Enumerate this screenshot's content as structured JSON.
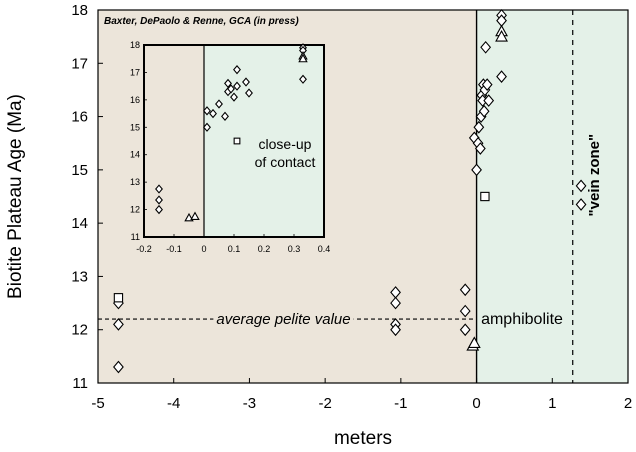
{
  "chart_data": {
    "type": "scatter",
    "citation": "Baxter, DePaolo & Renne, GCA (in press)",
    "xlabel": "meters",
    "ylabel": "Biotite Plateau Age (Ma)",
    "xlim": [
      -5,
      2
    ],
    "ylim": [
      11,
      18
    ],
    "xticks": [
      "-5",
      "-4",
      "-3",
      "-2",
      "-1",
      "0",
      "1",
      "2"
    ],
    "yticks": [
      "11",
      "12",
      "13",
      "14",
      "15",
      "16",
      "17",
      "18"
    ],
    "colors": {
      "pelite": "#ece5da",
      "amphibolite": "#e4f1e8",
      "axis": "#000000"
    },
    "contact_x": 0,
    "vein_zone_x": 1.27,
    "average_pelite_value": 12.2,
    "annotations": {
      "pelite_value": "average pelite value",
      "amphibolite": "amphibolite",
      "vein_zone": "\"vein zone\"",
      "inset": [
        "close-up",
        "of contact"
      ]
    },
    "series": [
      {
        "marker": "diamond",
        "points": [
          [
            -4.73,
            12.5
          ],
          [
            -4.73,
            12.1
          ],
          [
            -4.73,
            11.3
          ],
          [
            -1.07,
            12.7
          ],
          [
            -1.07,
            12.5
          ],
          [
            -1.07,
            12.1
          ],
          [
            -1.07,
            12.0
          ],
          [
            -0.15,
            12.75
          ],
          [
            -0.15,
            12.35
          ],
          [
            -0.15,
            12.0
          ],
          [
            -0.03,
            15.6
          ],
          [
            0.0,
            15.0
          ],
          [
            0.02,
            15.5
          ],
          [
            0.03,
            15.8
          ],
          [
            0.05,
            15.4
          ],
          [
            0.06,
            16.0
          ],
          [
            0.07,
            16.4
          ],
          [
            0.08,
            16.3
          ],
          [
            0.09,
            16.6
          ],
          [
            0.1,
            16.1
          ],
          [
            0.11,
            16.5
          ],
          [
            0.12,
            17.3
          ],
          [
            0.14,
            16.6
          ],
          [
            0.16,
            16.3
          ],
          [
            0.33,
            17.9
          ],
          [
            0.33,
            17.8
          ],
          [
            0.33,
            16.75
          ],
          [
            1.38,
            14.7
          ],
          [
            1.38,
            14.35
          ]
        ]
      },
      {
        "marker": "triangle",
        "points": [
          [
            -0.05,
            11.7
          ],
          [
            -0.03,
            11.75
          ],
          [
            0.33,
            17.6
          ],
          [
            0.33,
            17.5
          ]
        ]
      },
      {
        "marker": "square",
        "points": [
          [
            -4.73,
            12.6
          ],
          [
            0.11,
            14.5
          ]
        ]
      }
    ],
    "inset": {
      "xlim": [
        -0.2,
        0.4
      ],
      "ylim": [
        11,
        18
      ],
      "xticks": [
        "-0.2",
        "-0.1",
        "0",
        "0.1",
        "0.2",
        "0.3",
        "0.4"
      ],
      "yticks": [
        "11",
        "12",
        "13",
        "14",
        "15",
        "16",
        "17",
        "18"
      ],
      "series": [
        {
          "marker": "diamond",
          "points": [
            [
              -0.15,
              12.75
            ],
            [
              -0.15,
              12.35
            ],
            [
              -0.15,
              12.0
            ],
            [
              0.01,
              15.6
            ],
            [
              0.01,
              15.0
            ],
            [
              0.03,
              15.5
            ],
            [
              0.05,
              15.85
            ],
            [
              0.07,
              15.4
            ],
            [
              0.08,
              16.3
            ],
            [
              0.08,
              16.6
            ],
            [
              0.09,
              16.4
            ],
            [
              0.1,
              16.1
            ],
            [
              0.11,
              16.5
            ],
            [
              0.11,
              17.1
            ],
            [
              0.14,
              16.65
            ],
            [
              0.15,
              16.25
            ],
            [
              0.33,
              17.9
            ],
            [
              0.33,
              17.8
            ],
            [
              0.33,
              16.75
            ]
          ]
        },
        {
          "marker": "triangle",
          "points": [
            [
              -0.05,
              11.7
            ],
            [
              -0.03,
              11.75
            ],
            [
              0.33,
              17.6
            ],
            [
              0.33,
              17.5
            ]
          ]
        },
        {
          "marker": "square",
          "points": [
            [
              0.11,
              14.5
            ]
          ]
        }
      ]
    }
  }
}
